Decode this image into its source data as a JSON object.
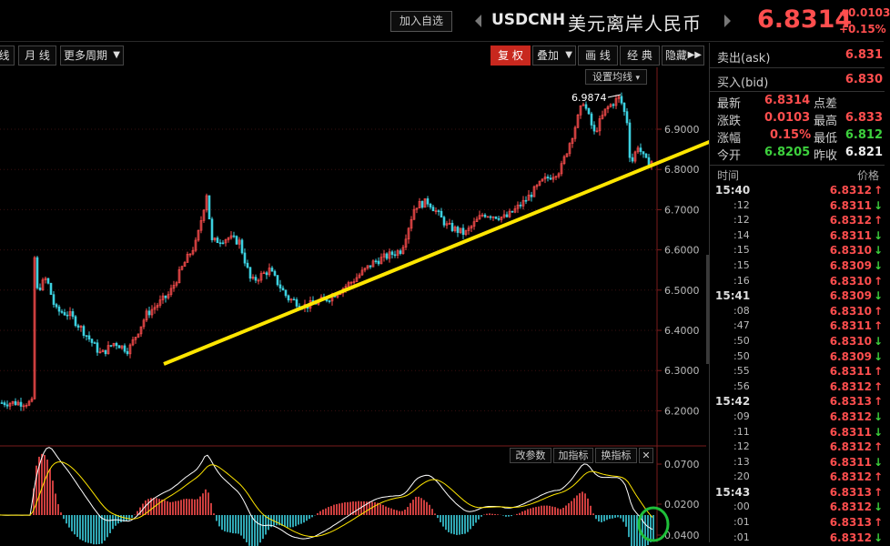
{
  "header": {
    "add_watch": "加入自选",
    "symbol": "USDCNH",
    "symbol_cn": "美元离岸人民币",
    "price": "6.8314",
    "change_abs": "+0.0103",
    "change_pct": "+0.15%"
  },
  "toolbar": {
    "left_partial": "线",
    "monthly": "月 线",
    "more_periods": "更多周期",
    "restore_rights": "复 权",
    "overlay": "叠加",
    "draw_line": "画 线",
    "classic": "经 典",
    "hide": "隐藏"
  },
  "chart": {
    "set_ma_label": "设置均线",
    "peak_label": "6.9874",
    "price_axis": [
      "6.9000",
      "6.8000",
      "6.7000",
      "6.6000",
      "6.5000",
      "6.4000",
      "6.3000",
      "6.2000"
    ],
    "indicator_axis": [
      "0.0700",
      "0.0200",
      "0.0400"
    ],
    "sub_tools": {
      "modify_params": "改参数",
      "add_indicator": "加指标",
      "switch_indicator": "换指标",
      "close": "✕"
    },
    "colors": {
      "up": "#ff4e4e",
      "down": "#3dd1e0",
      "trendline": "#ffe600",
      "annotation_circle": "#1fbf3a",
      "dif_line": "#ffffff",
      "dea_line": "#ffe600"
    }
  },
  "quotes": {
    "ask_label": "卖出(ask)",
    "ask_value": "6.831",
    "bid_label": "买入(bid)",
    "bid_value": "6.830",
    "latest_label": "最新",
    "latest_value": "6.8314",
    "spread_label": "点差",
    "change_label": "涨跌",
    "change_value": "0.0103",
    "high_label": "最高",
    "high_value": "6.833",
    "pct_label": "涨幅",
    "pct_value": "0.15%",
    "low_label": "最低",
    "low_value": "6.812",
    "open_label": "今开",
    "open_value": "6.8205",
    "prev_close_label": "昨收",
    "prev_close_value": "6.821"
  },
  "ticks": {
    "time_header": "时间",
    "price_header": "价格",
    "rows": [
      {
        "time": "15:40",
        "major": true,
        "price": "6.8312",
        "dir": "up"
      },
      {
        "time": ":12",
        "major": false,
        "price": "6.8311",
        "dir": "down"
      },
      {
        "time": ":12",
        "major": false,
        "price": "6.8312",
        "dir": "up"
      },
      {
        "time": ":14",
        "major": false,
        "price": "6.8311",
        "dir": "down"
      },
      {
        "time": ":15",
        "major": false,
        "price": "6.8310",
        "dir": "down"
      },
      {
        "time": ":15",
        "major": false,
        "price": "6.8309",
        "dir": "down"
      },
      {
        "time": ":16",
        "major": false,
        "price": "6.8310",
        "dir": "up"
      },
      {
        "time": "15:41",
        "major": true,
        "price": "6.8309",
        "dir": "down"
      },
      {
        "time": ":08",
        "major": false,
        "price": "6.8310",
        "dir": "up"
      },
      {
        "time": ":47",
        "major": false,
        "price": "6.8311",
        "dir": "up"
      },
      {
        "time": ":50",
        "major": false,
        "price": "6.8310",
        "dir": "down"
      },
      {
        "time": ":50",
        "major": false,
        "price": "6.8309",
        "dir": "down"
      },
      {
        "time": ":55",
        "major": false,
        "price": "6.8311",
        "dir": "up"
      },
      {
        "time": ":56",
        "major": false,
        "price": "6.8312",
        "dir": "up"
      },
      {
        "time": "15:42",
        "major": true,
        "price": "6.8313",
        "dir": "up"
      },
      {
        "time": ":09",
        "major": false,
        "price": "6.8312",
        "dir": "down"
      },
      {
        "time": ":11",
        "major": false,
        "price": "6.8311",
        "dir": "down"
      },
      {
        "time": ":12",
        "major": false,
        "price": "6.8312",
        "dir": "up"
      },
      {
        "time": ":13",
        "major": false,
        "price": "6.8311",
        "dir": "down"
      },
      {
        "time": ":20",
        "major": false,
        "price": "6.8312",
        "dir": "up"
      },
      {
        "time": "15:43",
        "major": true,
        "price": "6.8313",
        "dir": "up"
      },
      {
        "time": ":00",
        "major": false,
        "price": "6.8312",
        "dir": "down"
      },
      {
        "time": ":01",
        "major": false,
        "price": "6.8313",
        "dir": "up"
      },
      {
        "time": ":01",
        "major": false,
        "price": "6.8312",
        "dir": "down"
      }
    ]
  }
}
